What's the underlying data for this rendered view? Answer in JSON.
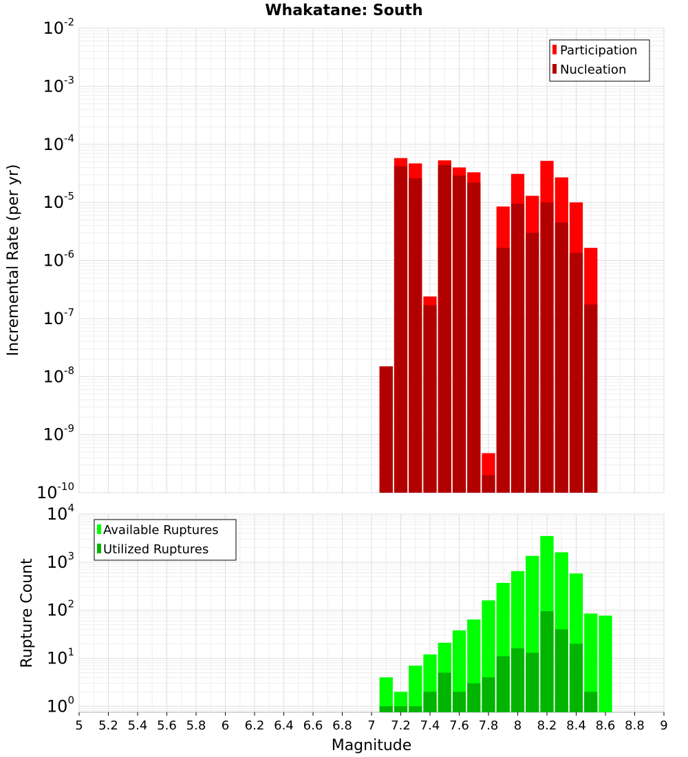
{
  "figure_title": "Whakatane: South",
  "chart_data": [
    {
      "type": "bar",
      "scale": "log",
      "ylabel": "Incremental Rate (per yr)",
      "ylim": [
        1e-10,
        0.01
      ],
      "xlim": [
        5,
        9
      ],
      "y_tick_exponents": [
        "-10",
        "-9",
        "-8",
        "-7",
        "-6",
        "-5",
        "-4",
        "-3",
        "-2"
      ],
      "grid": true,
      "legend_position": "top-right",
      "series": [
        {
          "name": "Participation",
          "color": "#ff0000",
          "x": [
            7.1,
            7.2,
            7.3,
            7.4,
            7.5,
            7.6,
            7.7,
            7.8,
            7.9,
            8.0,
            8.1,
            8.2,
            8.3,
            8.4,
            8.5
          ],
          "values": [
            1.5e-08,
            5.8e-05,
            4.7e-05,
            2.4e-07,
            5.3e-05,
            4e-05,
            3.3e-05,
            4.8e-10,
            8.5e-06,
            3.1e-05,
            1.3e-05,
            5.2e-05,
            2.7e-05,
            1e-05,
            1.65e-06
          ]
        },
        {
          "name": "Nucleation",
          "color": "#b20000",
          "x": [
            7.1,
            7.2,
            7.3,
            7.4,
            7.5,
            7.6,
            7.7,
            7.8,
            7.9,
            8.0,
            8.1,
            8.2,
            8.3,
            8.4,
            8.5
          ],
          "values": [
            1.5e-08,
            4.2e-05,
            2.6e-05,
            1.7e-07,
            4.4e-05,
            2.9e-05,
            2.2e-05,
            2e-10,
            1.65e-06,
            9.5e-06,
            3e-06,
            1e-05,
            4.5e-06,
            1.35e-06,
            1.75e-07
          ]
        }
      ]
    },
    {
      "type": "bar",
      "scale": "log",
      "xlabel": "Magnitude",
      "ylabel": "Rupture Count",
      "ylim": [
        0.75,
        10000.0
      ],
      "xlim": [
        5,
        9
      ],
      "y_tick_exponents": [
        "0",
        "1",
        "2",
        "3",
        "4"
      ],
      "x_ticks": [
        "5",
        "5.2",
        "5.4",
        "5.6",
        "5.8",
        "6",
        "6.2",
        "6.4",
        "6.6",
        "6.8",
        "7",
        "7.2",
        "7.4",
        "7.6",
        "7.8",
        "8",
        "8.2",
        "8.4",
        "8.6",
        "8.8",
        "9"
      ],
      "grid": true,
      "legend_position": "top-left",
      "series": [
        {
          "name": "Available Ruptures",
          "color": "#00ff00",
          "x": [
            7.1,
            7.2,
            7.3,
            7.4,
            7.5,
            7.6,
            7.7,
            7.8,
            7.9,
            8.0,
            8.1,
            8.2,
            8.3,
            8.4,
            8.5,
            8.6
          ],
          "values": [
            4,
            2,
            7,
            12,
            21,
            38,
            64,
            160,
            370,
            650,
            1350,
            3500,
            1600,
            580,
            85,
            77
          ]
        },
        {
          "name": "Utilized Ruptures",
          "color": "#00b400",
          "x": [
            7.1,
            7.2,
            7.3,
            7.4,
            7.5,
            7.6,
            7.7,
            7.8,
            7.9,
            8.0,
            8.1,
            8.2,
            8.3,
            8.4,
            8.5
          ],
          "values": [
            1,
            1,
            1,
            2,
            5,
            2,
            3,
            4,
            11,
            16,
            13,
            95,
            40,
            20,
            2
          ]
        }
      ]
    }
  ]
}
